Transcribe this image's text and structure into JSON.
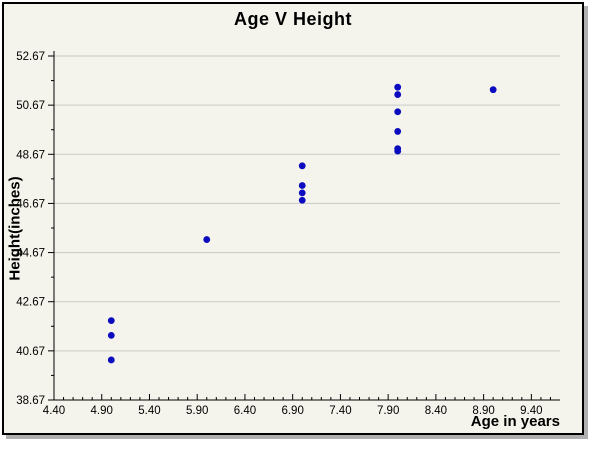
{
  "chart_data": {
    "type": "scatter",
    "title": "Age V Height",
    "xlabel": "Age in years",
    "ylabel": "Height(inches)",
    "xlim": [
      4.4,
      9.7
    ],
    "ylim": [
      38.67,
      52.67
    ],
    "x_major_tick_labels": [
      "4.40",
      "4.90",
      "5.40",
      "5.90",
      "6.40",
      "6.90",
      "7.40",
      "7.90",
      "8.40",
      "8.90",
      "9.40"
    ],
    "x_major_step": 0.5,
    "x_minor_step": 0.1,
    "y_major_tick_labels": [
      "38.67",
      "40.67",
      "42.67",
      "44.67",
      "46.67",
      "48.67",
      "50.67",
      "52.67"
    ],
    "y_major_step": 2,
    "y_minor_step": 1,
    "grid": "horizontal-major-only",
    "legend": "none",
    "points": [
      {
        "x": 5,
        "y": 41.9
      },
      {
        "x": 5,
        "y": 41.3
      },
      {
        "x": 5,
        "y": 40.3
      },
      {
        "x": 6,
        "y": 45.2
      },
      {
        "x": 7,
        "y": 48.2
      },
      {
        "x": 7,
        "y": 47.4
      },
      {
        "x": 7,
        "y": 47.1
      },
      {
        "x": 7,
        "y": 46.8
      },
      {
        "x": 8,
        "y": 51.4
      },
      {
        "x": 8,
        "y": 51.1
      },
      {
        "x": 8,
        "y": 50.4
      },
      {
        "x": 8,
        "y": 49.6
      },
      {
        "x": 8,
        "y": 48.9
      },
      {
        "x": 8,
        "y": 48.8
      },
      {
        "x": 9,
        "y": 51.3
      }
    ],
    "colors": {
      "point": "#0b0bbf",
      "grid": "#c9c9c9",
      "axis": "#000000",
      "plot_background": "#f4f4ec",
      "frame_border": "#000000",
      "shadow": "#b0b0b0",
      "text": "#000000"
    },
    "marker": {
      "shape": "circle",
      "radius_px": 3.4
    }
  }
}
